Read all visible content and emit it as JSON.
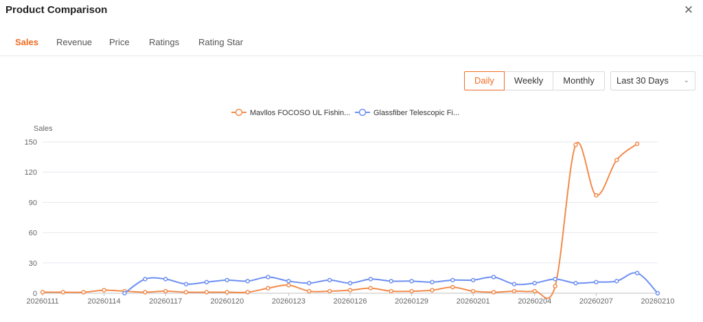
{
  "header": {
    "title": "Product Comparison",
    "close_glyph": "✕"
  },
  "tabs": [
    {
      "label": "Sales",
      "active": true
    },
    {
      "label": "Revenue",
      "active": false
    },
    {
      "label": "Price",
      "active": false
    },
    {
      "label": "Ratings",
      "active": false
    },
    {
      "label": "Rating Star",
      "active": false
    }
  ],
  "controls": {
    "ranges": [
      {
        "label": "Daily",
        "active": true
      },
      {
        "label": "Weekly",
        "active": false
      },
      {
        "label": "Monthly",
        "active": false
      }
    ],
    "period": "Last 30 Days"
  },
  "chart_data": {
    "type": "line",
    "ylabel": "Sales",
    "ylim": [
      0,
      150
    ],
    "yticks": [
      0,
      30,
      60,
      90,
      120,
      150
    ],
    "x": [
      "20260111",
      "20260112",
      "20260113",
      "20260114",
      "20260115",
      "20260116",
      "20260117",
      "20260118",
      "20260119",
      "20260120",
      "20260121",
      "20260122",
      "20260123",
      "20260124",
      "20260125",
      "20260126",
      "20260127",
      "20260128",
      "20260129",
      "20260130",
      "20260131",
      "20260201",
      "20260202",
      "20260203",
      "20260204",
      "20260205",
      "20260206",
      "20260207",
      "20260208",
      "20260209",
      "20260210"
    ],
    "xtick_labels": [
      "20260111",
      "20260114",
      "20260117",
      "20260120",
      "20260123",
      "20260126",
      "20260129",
      "20260201",
      "20260204",
      "20260207",
      "20260210"
    ],
    "legend_position": "top",
    "grid": true,
    "colors": {
      "series1": "#f28a4a",
      "series2": "#6b8ef2"
    },
    "series": [
      {
        "name": "Mavllos FOCOSO UL Fishin...",
        "values": [
          1,
          1,
          1,
          3,
          2,
          1,
          2,
          1,
          1,
          1,
          1,
          5,
          8,
          2,
          2,
          3,
          5,
          2,
          2,
          3,
          6,
          2,
          1,
          2,
          2,
          7,
          147,
          97,
          132,
          148,
          null
        ]
      },
      {
        "name": "Glassfiber Telescopic Fi...",
        "values": [
          null,
          null,
          null,
          null,
          0,
          14,
          14,
          9,
          11,
          13,
          12,
          16,
          12,
          10,
          13,
          10,
          14,
          12,
          12,
          11,
          13,
          13,
          16,
          9,
          10,
          14,
          10,
          11,
          12,
          20,
          0
        ]
      }
    ]
  }
}
